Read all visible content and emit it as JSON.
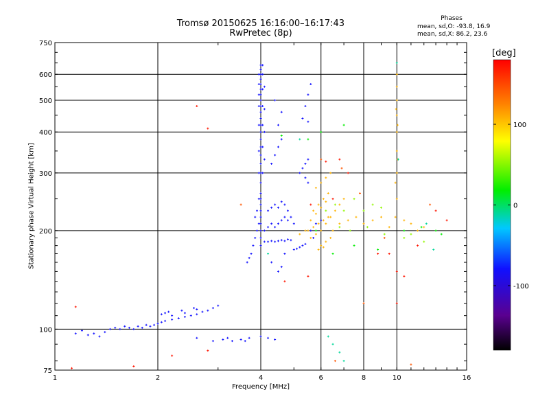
{
  "title": "Tromsø 20150625 16:16:00–16:17:43",
  "subtitle": "RwPretec (8p)",
  "phases": {
    "title": "Phases",
    "o_line": "mean, sd,O: -93.8, 16.9",
    "x_line": "mean, sd,X:  86.2, 23.6"
  },
  "chart_data": {
    "type": "scatter",
    "title": "Tromsø 20150625 16:16:00–16:17:43",
    "subtitle": "RwPretec (8p)",
    "xlabel": "Frequency [MHz]",
    "ylabel": "Stationary phase Virtual Height [km]",
    "xscale": "log",
    "yscale": "log",
    "xlim": [
      1,
      16
    ],
    "ylim": [
      75,
      750
    ],
    "xticks": [
      1,
      2,
      4,
      6,
      8,
      10,
      16
    ],
    "yticks": [
      75,
      100,
      200,
      300,
      400,
      500,
      600,
      750
    ],
    "grid": true,
    "colorbar": {
      "label": "[deg]",
      "range": [
        -180,
        180
      ],
      "ticks": [
        100,
        0,
        -100
      ],
      "colormap": "rainbow (black-purple-blue-cyan-green-yellow-orange-red)"
    },
    "series": [
      {
        "phase": -100,
        "points": [
          [
            1.15,
            97
          ],
          [
            1.2,
            99
          ],
          [
            1.25,
            96
          ],
          [
            1.3,
            97
          ],
          [
            1.35,
            95
          ],
          [
            1.4,
            98
          ],
          [
            1.45,
            100
          ],
          [
            1.5,
            101
          ],
          [
            1.55,
            100
          ],
          [
            1.6,
            102
          ],
          [
            1.65,
            101
          ],
          [
            1.7,
            100
          ],
          [
            1.75,
            102
          ],
          [
            1.8,
            101
          ],
          [
            1.85,
            103
          ],
          [
            1.9,
            102
          ],
          [
            1.95,
            103
          ],
          [
            2.0,
            104
          ],
          [
            2.05,
            105
          ],
          [
            2.1,
            106
          ],
          [
            2.2,
            107
          ],
          [
            2.3,
            108
          ],
          [
            2.4,
            109
          ],
          [
            2.5,
            110
          ],
          [
            2.6,
            111
          ],
          [
            2.7,
            113
          ],
          [
            2.8,
            114
          ],
          [
            2.9,
            116
          ],
          [
            3.0,
            118
          ],
          [
            2.1,
            112
          ],
          [
            2.2,
            110
          ],
          [
            2.4,
            112
          ],
          [
            2.6,
            115
          ],
          [
            2.05,
            111
          ],
          [
            2.15,
            113
          ],
          [
            2.35,
            114
          ],
          [
            2.55,
            116
          ],
          [
            2.6,
            94
          ],
          [
            3.1,
            93
          ],
          [
            3.3,
            92
          ],
          [
            3.5,
            93
          ],
          [
            3.6,
            92
          ],
          [
            3.7,
            94
          ],
          [
            4.0,
            95
          ],
          [
            4.2,
            94
          ],
          [
            4.4,
            93
          ],
          [
            2.9,
            92
          ],
          [
            3.2,
            94
          ],
          [
            3.65,
            160
          ],
          [
            3.7,
            165
          ],
          [
            3.75,
            170
          ],
          [
            3.8,
            180
          ],
          [
            3.85,
            190
          ],
          [
            3.9,
            200
          ],
          [
            3.95,
            210
          ],
          [
            3.9,
            230
          ],
          [
            3.95,
            250
          ],
          [
            3.85,
            220
          ],
          [
            4.0,
            180
          ],
          [
            4.0,
            190
          ],
          [
            4.0,
            200
          ],
          [
            4.0,
            210
          ],
          [
            4.0,
            220
          ],
          [
            4.0,
            230
          ],
          [
            4.0,
            240
          ],
          [
            4.0,
            250
          ],
          [
            4.0,
            260
          ],
          [
            4.0,
            280
          ],
          [
            4.0,
            300
          ],
          [
            4.0,
            320
          ],
          [
            4.0,
            340
          ],
          [
            4.0,
            360
          ],
          [
            4.0,
            380
          ],
          [
            4.0,
            400
          ],
          [
            4.0,
            420
          ],
          [
            4.0,
            440
          ],
          [
            4.0,
            460
          ],
          [
            4.0,
            480
          ],
          [
            4.0,
            500
          ],
          [
            4.0,
            520
          ],
          [
            4.0,
            540
          ],
          [
            4.0,
            560
          ],
          [
            4.0,
            580
          ],
          [
            4.0,
            600
          ],
          [
            4.0,
            620
          ],
          [
            4.0,
            640
          ],
          [
            3.95,
            300
          ],
          [
            3.95,
            350
          ],
          [
            3.95,
            420
          ],
          [
            3.95,
            480
          ],
          [
            3.95,
            520
          ],
          [
            3.95,
            560
          ],
          [
            3.95,
            600
          ],
          [
            4.05,
            300
          ],
          [
            4.05,
            360
          ],
          [
            4.05,
            420
          ],
          [
            4.05,
            480
          ],
          [
            4.05,
            540
          ],
          [
            4.05,
            600
          ],
          [
            4.05,
            640
          ],
          [
            4.1,
            330
          ],
          [
            4.1,
            400
          ],
          [
            4.1,
            470
          ],
          [
            4.1,
            550
          ],
          [
            4.1,
            185
          ],
          [
            4.2,
            185
          ],
          [
            4.3,
            186
          ],
          [
            4.4,
            185
          ],
          [
            4.5,
            186
          ],
          [
            4.6,
            187
          ],
          [
            4.7,
            186
          ],
          [
            4.8,
            188
          ],
          [
            4.9,
            187
          ],
          [
            4.1,
            200
          ],
          [
            4.2,
            205
          ],
          [
            4.3,
            210
          ],
          [
            4.4,
            205
          ],
          [
            4.5,
            210
          ],
          [
            4.6,
            215
          ],
          [
            4.7,
            220
          ],
          [
            4.8,
            215
          ],
          [
            4.9,
            220
          ],
          [
            5.0,
            210
          ],
          [
            4.2,
            230
          ],
          [
            4.3,
            235
          ],
          [
            4.4,
            240
          ],
          [
            4.5,
            235
          ],
          [
            4.6,
            245
          ],
          [
            4.7,
            240
          ],
          [
            4.8,
            230
          ],
          [
            4.3,
            320
          ],
          [
            4.4,
            340
          ],
          [
            4.5,
            360
          ],
          [
            4.6,
            380
          ],
          [
            4.5,
            420
          ],
          [
            4.6,
            460
          ],
          [
            4.4,
            500
          ],
          [
            5.2,
            300
          ],
          [
            5.3,
            310
          ],
          [
            5.4,
            320
          ],
          [
            5.5,
            330
          ],
          [
            5.4,
            290
          ],
          [
            5.5,
            280
          ],
          [
            5.0,
            175
          ],
          [
            5.1,
            176
          ],
          [
            5.2,
            178
          ],
          [
            5.3,
            180
          ],
          [
            5.4,
            182
          ],
          [
            5.5,
            430
          ],
          [
            5.3,
            440
          ],
          [
            5.4,
            480
          ],
          [
            5.5,
            520
          ],
          [
            5.6,
            560
          ],
          [
            5.6,
            200
          ],
          [
            5.8,
            210
          ],
          [
            6.0,
            215
          ],
          [
            5.7,
            190
          ],
          [
            4.5,
            150
          ],
          [
            4.6,
            155
          ],
          [
            4.3,
            160
          ],
          [
            4.7,
            170
          ]
        ]
      },
      {
        "phase": 100,
        "points": [
          [
            5.6,
            190
          ],
          [
            5.8,
            195
          ],
          [
            6.0,
            200
          ],
          [
            6.2,
            210
          ],
          [
            6.4,
            220
          ],
          [
            6.6,
            230
          ],
          [
            6.8,
            240
          ],
          [
            7.0,
            250
          ],
          [
            5.7,
            230
          ],
          [
            5.9,
            240
          ],
          [
            6.1,
            250
          ],
          [
            6.3,
            260
          ],
          [
            5.8,
            270
          ],
          [
            6.0,
            280
          ],
          [
            6.2,
            290
          ],
          [
            6.4,
            300
          ],
          [
            5.5,
            200
          ],
          [
            5.7,
            205
          ],
          [
            5.9,
            210
          ],
          [
            6.1,
            215
          ],
          [
            6.3,
            220
          ],
          [
            5.2,
            195
          ],
          [
            5.4,
            200
          ],
          [
            5.6,
            215
          ],
          [
            5.8,
            225
          ],
          [
            6.0,
            235
          ],
          [
            6.2,
            245
          ],
          [
            6.5,
            200
          ],
          [
            6.8,
            210
          ],
          [
            7.2,
            215
          ],
          [
            7.6,
            220
          ],
          [
            8.0,
            210
          ],
          [
            8.5,
            215
          ],
          [
            9.0,
            220
          ],
          [
            9.5,
            205
          ],
          [
            10.0,
            250
          ],
          [
            10.0,
            300
          ],
          [
            10.0,
            350
          ],
          [
            10.0,
            400
          ],
          [
            10.0,
            450
          ],
          [
            10.0,
            500
          ],
          [
            10.0,
            550
          ],
          [
            10.0,
            600
          ],
          [
            9.9,
            220
          ],
          [
            9.9,
            280
          ],
          [
            10.05,
            330
          ],
          [
            10.05,
            420
          ],
          [
            9.95,
            470
          ],
          [
            10.5,
            215
          ],
          [
            11.0,
            210
          ],
          [
            11.5,
            200
          ],
          [
            12.0,
            205
          ],
          [
            6.0,
            180
          ],
          [
            6.2,
            185
          ],
          [
            6.4,
            190
          ],
          [
            5.9,
            175
          ],
          [
            6.1,
            178
          ]
        ]
      },
      {
        "phase": 40,
        "points": [
          [
            6.2,
            230
          ],
          [
            6.6,
            240
          ],
          [
            7.0,
            230
          ],
          [
            7.5,
            250
          ],
          [
            8.0,
            230
          ],
          [
            8.5,
            240
          ],
          [
            9.0,
            235
          ],
          [
            6.8,
            205
          ],
          [
            7.3,
            200
          ],
          [
            8.2,
            205
          ],
          [
            9.2,
            195
          ],
          [
            10.5,
            190
          ],
          [
            11.0,
            195
          ],
          [
            12.0,
            185
          ]
        ]
      },
      {
        "phase": 0,
        "points": [
          [
            5.5,
            380
          ],
          [
            6.0,
            400
          ],
          [
            7.0,
            420
          ],
          [
            4.6,
            390
          ],
          [
            5.8,
            200
          ],
          [
            7.5,
            180
          ],
          [
            8.8,
            175
          ],
          [
            10.5,
            200
          ],
          [
            11.8,
            205
          ],
          [
            13.0,
            200
          ],
          [
            13.5,
            195
          ],
          [
            6.5,
            170
          ]
        ]
      },
      {
        "phase": 170,
        "points": [
          [
            1.15,
            117
          ],
          [
            1.12,
            76
          ],
          [
            1.7,
            77
          ],
          [
            2.6,
            480
          ],
          [
            2.8,
            410
          ],
          [
            2.2,
            83
          ],
          [
            2.8,
            86
          ],
          [
            6.5,
            250
          ],
          [
            7.2,
            300
          ],
          [
            5.6,
            240
          ],
          [
            9.5,
            170
          ],
          [
            10.0,
            150
          ],
          [
            10.5,
            145
          ],
          [
            11.5,
            180
          ],
          [
            14.0,
            215
          ],
          [
            13.0,
            230
          ],
          [
            10.0,
            120
          ],
          [
            8.8,
            170
          ],
          [
            6.8,
            330
          ],
          [
            6.2,
            325
          ],
          [
            5.5,
            145
          ],
          [
            4.7,
            140
          ]
        ]
      },
      {
        "phase": 140,
        "points": [
          [
            3.5,
            240
          ],
          [
            6.0,
            330
          ],
          [
            6.9,
            310
          ],
          [
            9.2,
            190
          ],
          [
            12.5,
            240
          ],
          [
            7.8,
            260
          ],
          [
            6.6,
            80
          ],
          [
            11.0,
            78
          ],
          [
            8.0,
            120
          ]
        ]
      },
      {
        "phase": -30,
        "points": [
          [
            6.3,
            95
          ],
          [
            6.5,
            90
          ],
          [
            6.8,
            85
          ],
          [
            7.0,
            80
          ],
          [
            10.0,
            650
          ],
          [
            10.1,
            330
          ],
          [
            5.2,
            380
          ],
          [
            12.2,
            210
          ],
          [
            12.8,
            175
          ],
          [
            4.2,
            170
          ]
        ]
      }
    ]
  }
}
